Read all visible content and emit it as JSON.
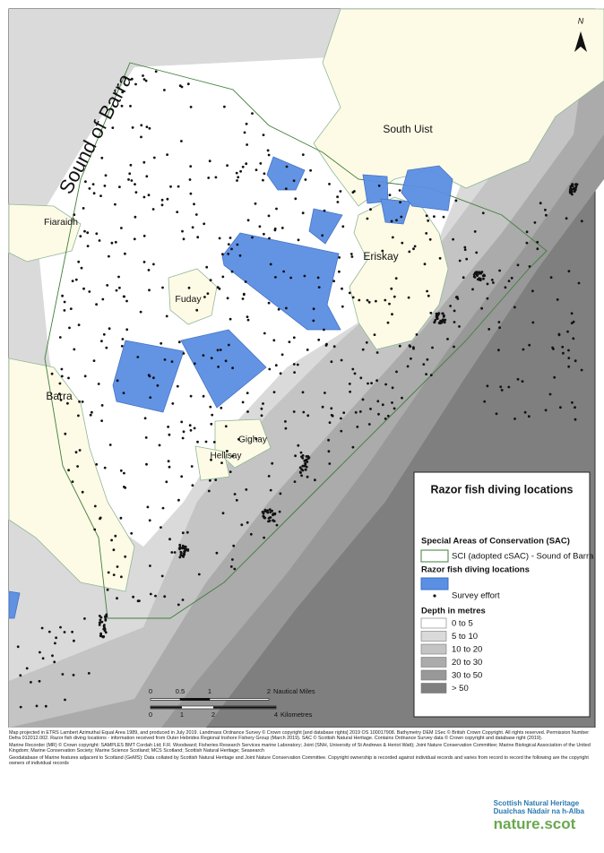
{
  "map": {
    "north": "N",
    "places": [
      "Sound of Barra",
      "South Uist",
      "Fiaraidh",
      "Eriskay",
      "Fuday",
      "Barra",
      "Gighay",
      "Hellisay"
    ]
  },
  "legend": {
    "title": "Razor fish diving locations",
    "sac_heading": "Special Areas of Conservation (SAC)",
    "sac_item": "SCI (adopted cSAC) - Sound of Barra",
    "razor_heading": "Razor fish diving locations",
    "survey_item": "Survey effort",
    "depth_heading": "Depth in metres",
    "depth_classes": [
      "0 to 5",
      "5 to 10",
      "10 to 20",
      "20 to 30",
      "30 to 50",
      "> 50"
    ]
  },
  "scale_bar": {
    "nautical_ticks": [
      "0",
      "0.5",
      "1",
      "2"
    ],
    "nautical_unit": "Nautical Miles",
    "km_ticks": [
      "0",
      "1",
      "2",
      "4"
    ],
    "km_unit": "Kilometres"
  },
  "footer": [
    "Map projected in ETRS Lambert Azimuthal Equal Area 1989, and produced in July 2019. Landmass Ordnance Survey © Crown copyright [and database rights] 2019 OS 100017908. Bathymetry DEM 1Sec © British Crown Copyright. All rights reserved. Permission Number Defra 012012.002. Razor fish diving locations - information received from Outer Hebrides Regional Inshore Fishery Group (March 2019). SAC © Scottish Natural Heritage. Contains Ordnance Survey data © Crown copyright and database right (2019).",
    "Marine Recorder (MR) © Crown copyright: SAMPLES BMT Cordah Ltd; F.R. Woodward; Fisheries Research Services marine Laboratory; Joint (SNH, University of St Andrews & Heriot Watt); Joint Nature Conservation Committee; Marine Biological Association of the United Kingdom; Marine Conservation Society; Marine Science Scotland; MCS Scotland; Scottish Natural Heritage; Seasearch",
    "Geodatabase of Marine features adjacent to Scotland (GeMS): Data collated by Scottish Natural Heritage and Joint Nature Conservation Committee. Copyright ownership is recorded against individual records and varies from record to record the following are the copyright owners of individual records"
  ],
  "logo": {
    "name_en": "Scottish Natural Heritage",
    "name_gd": "Dualchas Nàdair na h-Alba",
    "site": "nature.scot"
  }
}
